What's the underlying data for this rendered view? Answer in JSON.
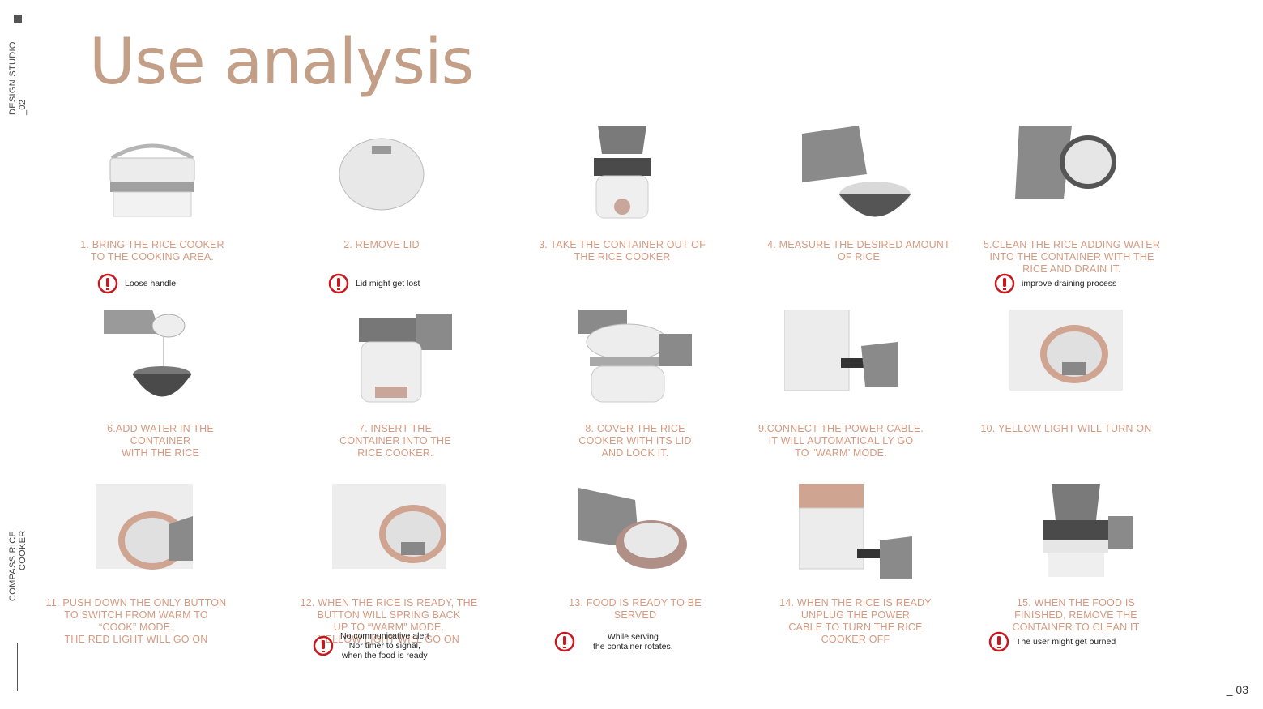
{
  "sidebar": {
    "top_label": "DESIGN STUDIO _02",
    "bottom_label": "COMPASS RICE COOKER"
  },
  "title": "Use analysis",
  "page_number": "_ 03",
  "colors": {
    "title": "#c49f88",
    "caption": "#d69a80",
    "alert": "#c8181e"
  },
  "steps": [
    {
      "caption": "1.  BRING THE RICE COOKER\nTO THE COOKING AREA.",
      "icon": "rice-cooker-with-handle",
      "alert": "Loose handle"
    },
    {
      "caption": "2. REMOVE LID",
      "icon": "lid",
      "alert": "Lid might get lost"
    },
    {
      "caption": "3. TAKE THE CONTAINER OUT OF\nTHE RICE COOKER",
      "icon": "hand-lifting-container"
    },
    {
      "caption": "4. MEASURE THE DESIRED AMOUNT\nOF RICE",
      "icon": "pouring-rice-into-bowl"
    },
    {
      "caption": "5.CLEAN THE RICE  ADDING WATER\nINTO THE CONTAINER WITH THE\nRICE AND DRAIN IT.",
      "icon": "hands-draining-container",
      "alert": "improve draining process"
    },
    {
      "caption": "6.ADD WATER IN THE\nCONTAINER\nWITH THE RICE",
      "icon": "pouring-water",
      "alert": ""
    },
    {
      "caption": "7.  INSERT THE\nCONTAINER INTO THE\nRICE COOKER.",
      "icon": "inserting-container"
    },
    {
      "caption": "8. COVER THE RICE\nCOOKER WITH ITS LID\nAND LOCK IT.",
      "icon": "locking-lid"
    },
    {
      "caption": "9.CONNECT THE POWER CABLE.\nIT WILL AUTOMATICAL LY GO\nTO “WARM’ MODE.",
      "icon": "plugging-cable"
    },
    {
      "caption": "10. YELLOW LIGHT WILL TURN ON",
      "icon": "control-panel"
    },
    {
      "caption": "11. PUSH DOWN THE ONLY BUTTON\nTO SWITCH FROM WARM TO\n“COOK” MODE.\nTHE RED LIGHT WILL GO ON",
      "icon": "pressing-button"
    },
    {
      "caption": "12. WHEN THE RICE IS READY, THE\nBUTTON WILL SPRING BACK\nUP TO “WARM” MODE.\nYELLOW LIGHT WILL GO ON",
      "icon": "control-panel-warm",
      "alert": "No communicative alert\nNor timer to signal,\nwhen the food is ready"
    },
    {
      "caption": "13. FOOD IS READY TO BE\nSERVED",
      "icon": "serving-food",
      "alert": "While serving\nthe container rotates."
    },
    {
      "caption": "14. WHEN THE RICE IS READY\nUNPLUG THE POWER\nCABLE TO TURN THE RICE\nCOOKER OFF",
      "icon": "unplugging-cable"
    },
    {
      "caption": "15. WHEN THE FOOD IS\nFINISHED, REMOVE THE\nCONTAINER TO CLEAN IT",
      "icon": "removing-container",
      "alert": "The user might get burned"
    }
  ]
}
